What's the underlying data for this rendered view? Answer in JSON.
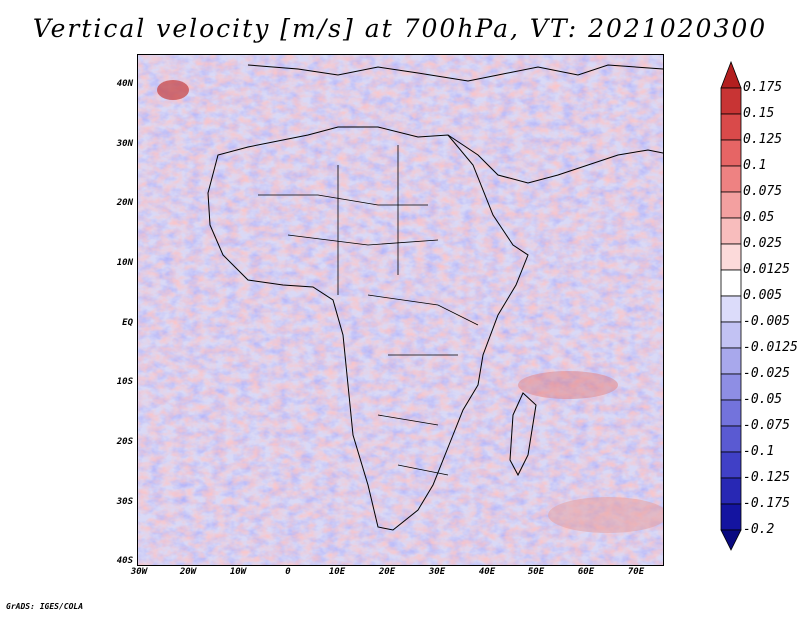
{
  "title": "Vertical velocity [m/s] at 700hPa, VT: 2021020300",
  "credit": "GrADS: IGES/COLA",
  "map": {
    "lat_labels": [
      "40N",
      "30N",
      "20N",
      "10N",
      "EQ",
      "10S",
      "20S",
      "30S",
      "40S"
    ],
    "lon_labels": [
      "30W",
      "20W",
      "10W",
      "0",
      "10E",
      "20E",
      "30E",
      "40E",
      "50E",
      "60E",
      "70E"
    ]
  },
  "colorbar": {
    "labels": [
      "0.175",
      "0.15",
      "0.125",
      "0.1",
      "0.075",
      "0.05",
      "0.025",
      "0.0125",
      "0.005",
      "-0.005",
      "-0.0125",
      "-0.025",
      "-0.05",
      "-0.075",
      "-0.1",
      "-0.125",
      "-0.175",
      "-0.2"
    ],
    "colors": [
      "#b31f1f",
      "#c83434",
      "#d94a4a",
      "#e66565",
      "#ee8282",
      "#f3a0a0",
      "#f8bdbd",
      "#fcdada",
      "#ffffff",
      "#dcdcfa",
      "#c2c2f3",
      "#a8a8ec",
      "#8e8ee4",
      "#7373dc",
      "#5a5ad2",
      "#4040c6",
      "#2828b4",
      "#1414a0",
      "#0a0a80"
    ]
  }
}
